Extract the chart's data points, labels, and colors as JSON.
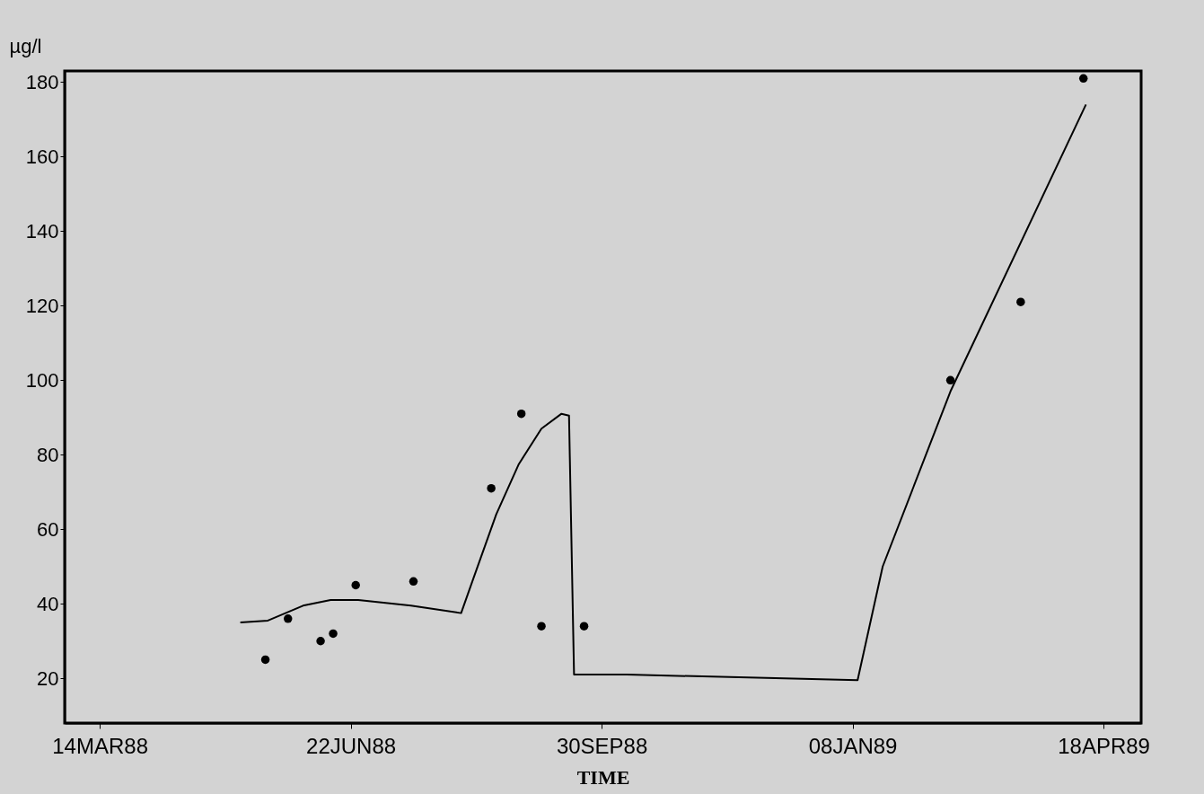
{
  "chart_data": {
    "type": "scatter",
    "xlabel": "TIME",
    "ylabel": "µg/l",
    "xlim": [
      "1988-02-29",
      "1989-05-03"
    ],
    "ylim": [
      8,
      183
    ],
    "xticks": [
      {
        "value": "1988-03-14",
        "label": "14MAR88"
      },
      {
        "value": "1988-06-22",
        "label": "22JUN88"
      },
      {
        "value": "1988-09-30",
        "label": "30SEP88"
      },
      {
        "value": "1989-01-08",
        "label": "08JAN89"
      },
      {
        "value": "1989-04-18",
        "label": "18APR89"
      }
    ],
    "yticks": [
      20,
      40,
      60,
      80,
      100,
      120,
      140,
      160,
      180
    ],
    "grid": false,
    "series": [
      {
        "color": "#000000",
        "marker": "circle",
        "x": [
          "1988-05-19",
          "1988-05-28",
          "1988-06-10",
          "1988-06-15",
          "1988-06-24",
          "1988-07-17",
          "1988-08-17",
          "1988-08-29",
          "1988-09-06",
          "1988-09-23",
          "1989-02-16",
          "1989-03-16",
          "1989-04-10"
        ],
        "values": [
          25,
          36,
          30,
          32,
          45,
          46,
          71,
          91,
          34,
          34,
          100,
          121,
          181
        ]
      },
      {
        "type": "line",
        "color": "#000000",
        "x": [
          "1988-05-09",
          "1988-05-20",
          "1988-06-03",
          "1988-06-14",
          "1988-06-25",
          "1988-07-16",
          "1988-08-05",
          "1988-08-10",
          "1988-08-19",
          "1988-08-28",
          "1988-09-06",
          "1988-09-14",
          "1988-09-17",
          "1988-09-19",
          "1988-10-10",
          "1989-01-10",
          "1989-01-20",
          "1989-02-16",
          "1989-04-11"
        ],
        "values": [
          35,
          35.5,
          39.5,
          41,
          41,
          39.5,
          37.5,
          47,
          64,
          77.5,
          87,
          91,
          90.5,
          21,
          21,
          19.5,
          50,
          97,
          174
        ]
      }
    ]
  }
}
